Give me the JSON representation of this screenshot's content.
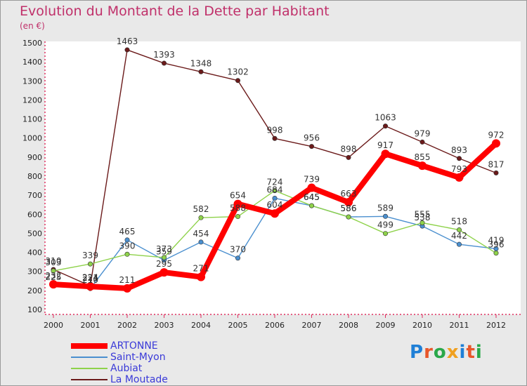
{
  "title": "Evolution du Montant de la Dette par Habitant",
  "unit": "(en €)",
  "logo": {
    "text": "Proxiti",
    "colors": [
      "#1f7fd6",
      "#e8562a",
      "#2aa84a",
      "#f0a020",
      "#1f7fd6",
      "#e8562a",
      "#2aa84a"
    ]
  },
  "chart_data": {
    "type": "line",
    "x": [
      "2000",
      "2001",
      "2002",
      "2003",
      "2004",
      "2005",
      "2006",
      "2007",
      "2008",
      "2009",
      "2010",
      "2011",
      "2012"
    ],
    "ylim": [
      100,
      1500
    ],
    "yticks": [
      100,
      200,
      300,
      400,
      500,
      600,
      700,
      800,
      900,
      1000,
      1100,
      1200,
      1300,
      1400,
      1500
    ],
    "grid": false,
    "legend_position": "bottom-left",
    "series": [
      {
        "name": "ARTONNE",
        "color": "#ff0000",
        "values": [
          232,
          221,
          211,
          295,
          271,
          654,
          604,
          739,
          663,
          917,
          855,
          793,
          972
        ]
      },
      {
        "name": "Saint-Myon",
        "color": "#4a8fcf",
        "values": [
          225,
          210,
          465,
          359,
          454,
          370,
          684,
          645,
          586,
          589,
          538,
          442,
          419
        ]
      },
      {
        "name": "Aubiat",
        "color": "#8ed24a",
        "values": [
          303,
          339,
          390,
          373,
          582,
          588,
          724,
          645,
          586,
          499,
          555,
          518,
          396
        ]
      },
      {
        "name": "La Moutade",
        "color": "#6b1a1a",
        "values": [
          310,
          224,
          1463,
          1393,
          1348,
          1302,
          998,
          956,
          898,
          1063,
          979,
          893,
          817
        ]
      }
    ]
  }
}
